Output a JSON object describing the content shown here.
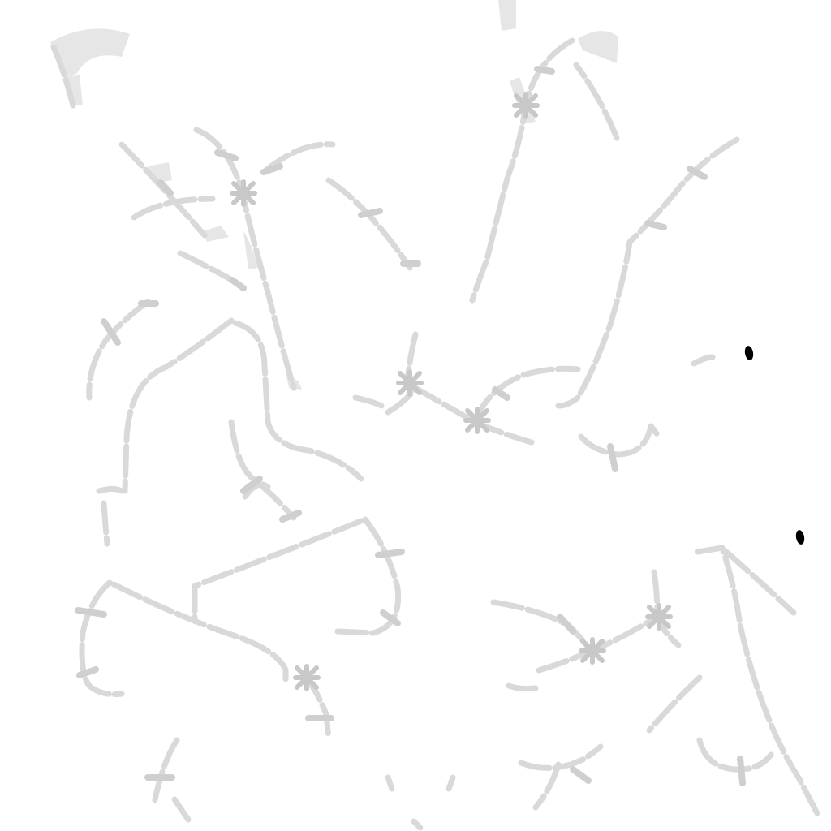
{
  "scene": {
    "description_label": "",
    "colors": {
      "background": "#ffffff",
      "trail": "#d9d9d9",
      "trail_dark": "#c8c8c8",
      "tick": "#cfcfcf",
      "blotch": "#e6e6e6",
      "dot": "#000000"
    }
  }
}
